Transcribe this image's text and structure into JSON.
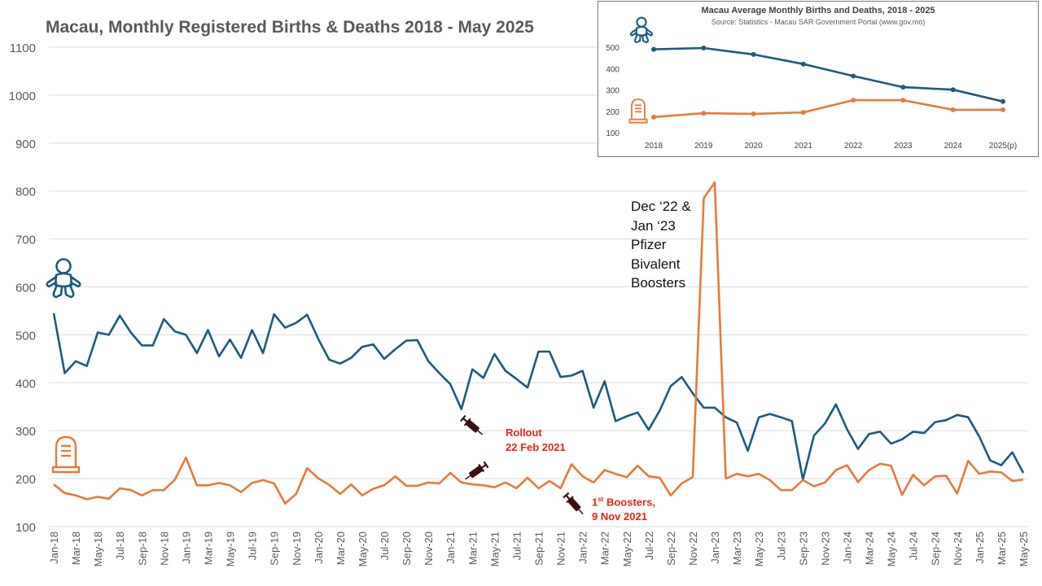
{
  "title": "Macau, Monthly Registered Births & Deaths 2018 - May 2025",
  "colors": {
    "births": "#1b5b7e",
    "deaths": "#e8793a",
    "annotation_red": "#e8231c",
    "grid": "#d9d9d9",
    "axis_text": "#595959"
  },
  "annotations": {
    "pfizer_lines": [
      "Dec ‘22 &",
      "Jan ‘23",
      "Pfizer",
      "Bivalent",
      "Boosters"
    ],
    "rollout_line1": "Rollout",
    "rollout_line2": "22 Feb 2021",
    "boosters_prefix": "1",
    "boosters_sup": "st",
    "boosters_line1": " Boosters,",
    "boosters_line2": "9 Nov 2021"
  },
  "icons": [
    "baby-icon",
    "tombstone-icon",
    "syringe-icon"
  ],
  "chart_data": [
    {
      "type": "line",
      "title": "Macau, Monthly Registered Births & Deaths 2018 - May 2025",
      "ylim": [
        100,
        1100
      ],
      "yticks": [
        100,
        200,
        300,
        400,
        500,
        600,
        700,
        800,
        900,
        1000,
        1100
      ],
      "grid": true,
      "x_tick_labels": [
        "Jan-18",
        "Mar-18",
        "May-18",
        "Jul-18",
        "Sep-18",
        "Nov-18",
        "Jan-19",
        "Mar-19",
        "May-19",
        "Jul-19",
        "Sep-19",
        "Nov-19",
        "Jan-20",
        "Mar-20",
        "May-20",
        "Jul-20",
        "Sep-20",
        "Nov-20",
        "Jan-21",
        "Mar-21",
        "May-21",
        "Jul-21",
        "Sep-21",
        "Nov-21",
        "Jan-22",
        "Mar-22",
        "May-22",
        "Jul-22",
        "Sep-22",
        "Nov-22",
        "Jan-23",
        "Mar-23",
        "May-23",
        "Jul-23",
        "Sep-23",
        "Nov-23",
        "Jan-24",
        "Mar-24",
        "May-24",
        "Jul-24",
        "Sep-24",
        "Nov-24",
        "Jan-25",
        "Mar-25",
        "May-25"
      ],
      "x_start": "Jan-18",
      "x_end": "May-25",
      "series": [
        {
          "name": "Births",
          "color": "#1b5b7e",
          "values": [
            545,
            420,
            445,
            435,
            505,
            500,
            540,
            505,
            478,
            478,
            533,
            507,
            500,
            462,
            510,
            455,
            490,
            452,
            510,
            462,
            543,
            515,
            525,
            542,
            492,
            448,
            440,
            452,
            475,
            480,
            450,
            470,
            488,
            489,
            445,
            420,
            397,
            345,
            428,
            410,
            460,
            425,
            408,
            390,
            465,
            465,
            412,
            415,
            425,
            348,
            403,
            320,
            330,
            338,
            302,
            342,
            393,
            412,
            378,
            348,
            348,
            328,
            317,
            258,
            328,
            335,
            328,
            320,
            198,
            290,
            315,
            355,
            303,
            262,
            293,
            298,
            273,
            282,
            298,
            295,
            318,
            322,
            333,
            328,
            288,
            238,
            228,
            255,
            212
          ]
        },
        {
          "name": "Deaths",
          "color": "#e8793a",
          "values": [
            188,
            170,
            165,
            157,
            162,
            158,
            180,
            176,
            165,
            176,
            176,
            198,
            244,
            186,
            186,
            191,
            186,
            172,
            191,
            197,
            190,
            148,
            168,
            222,
            201,
            187,
            168,
            188,
            165,
            179,
            186,
            205,
            185,
            185,
            192,
            190,
            212,
            192,
            188,
            186,
            182,
            192,
            180,
            202,
            180,
            195,
            180,
            230,
            205,
            192,
            218,
            210,
            203,
            227,
            205,
            202,
            165,
            190,
            203,
            785,
            818,
            200,
            210,
            205,
            210,
            197,
            176,
            176,
            197,
            184,
            192,
            218,
            228,
            193,
            218,
            231,
            227,
            166,
            208,
            186,
            205,
            206,
            169,
            237,
            210,
            215,
            213,
            195,
            198
          ]
        }
      ]
    },
    {
      "type": "line",
      "title": "Macau Average Monthly Births and Deaths, 2018 - 2025",
      "subtitle": "Source: Statistics - Macau SAR Government Portal (www.gov.mo)",
      "categories": [
        "2018",
        "2019",
        "2020",
        "2021",
        "2022",
        "2023",
        "2024",
        "2025(p)"
      ],
      "ylim": [
        100,
        500
      ],
      "yticks": [
        100,
        200,
        300,
        400,
        500
      ],
      "grid": false,
      "series": [
        {
          "name": "Births",
          "color": "#1b5b7e",
          "values": [
            490,
            496,
            466,
            421,
            365,
            313,
            301,
            246
          ]
        },
        {
          "name": "Deaths",
          "color": "#e8793a",
          "values": [
            173,
            191,
            188,
            195,
            252,
            252,
            207,
            207
          ]
        }
      ]
    }
  ]
}
